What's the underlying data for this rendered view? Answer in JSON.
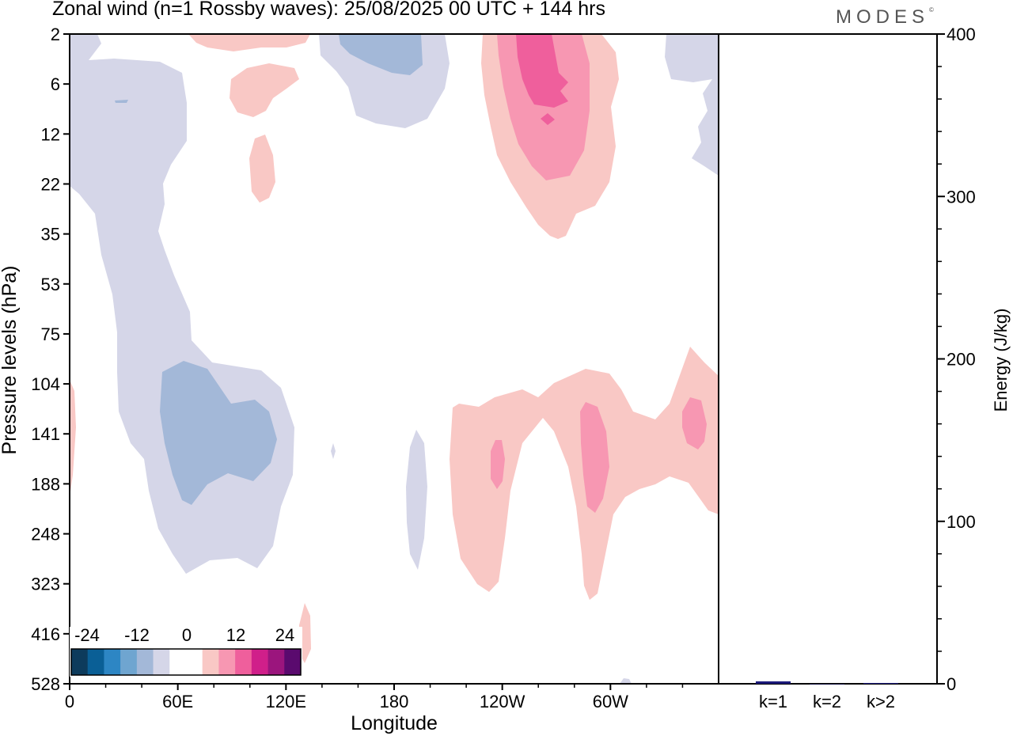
{
  "title": "Zonal wind (n=1 Rossby waves):  25/08/2025  00 UTC  + 144 hrs",
  "logo": "MODES",
  "logo_mark": "©",
  "colors": {
    "neg_fill_light": "#d5d6e8",
    "neg_fill_mid": "#a3b8d8",
    "pos_fill_light": "#f9c8c5",
    "pos_fill_mid": "#f797b2",
    "pos_fill_strong": "#ef5f9c",
    "bar_color": "#1c1a7a"
  },
  "chart_data": [
    {
      "type": "heatmap",
      "variant": "filled-contour",
      "title": "Zonal wind (n=1 Rossby waves)",
      "xlabel": "Longitude",
      "ylabel": "Pressure levels (hPa)",
      "x_ticks": [
        "0",
        "60E",
        "120E",
        "180",
        "120W",
        "60W"
      ],
      "y_ticks": [
        "2",
        "6",
        "12",
        "22",
        "35",
        "53",
        "75",
        "104",
        "141",
        "188",
        "248",
        "323",
        "416",
        "528"
      ],
      "colorbar": {
        "tick_labels": [
          "-24",
          "-12",
          "0",
          "12",
          "24"
        ],
        "colors": [
          "#0d3b5c",
          "#0a5f96",
          "#2d86c4",
          "#6fa5d0",
          "#a3b8d8",
          "#d5d6e8",
          "#ffffff",
          "#ffffff",
          "#f9c8c5",
          "#f797b2",
          "#ef5f9c",
          "#d01f8a",
          "#9b157d",
          "#5a0a6e"
        ]
      },
      "regions": [
        {
          "name": "negative-west-column",
          "level": -6
        },
        {
          "name": "negative-west-core",
          "level": -12
        },
        {
          "name": "negative-top-center",
          "level": -6
        },
        {
          "name": "negative-top-center-core",
          "level": -12
        },
        {
          "name": "negative-top-east",
          "level": -6
        },
        {
          "name": "positive-top-jet",
          "level": 6
        },
        {
          "name": "positive-top-jet-mid",
          "level": 12
        },
        {
          "name": "positive-top-jet-core",
          "level": 18
        },
        {
          "name": "positive-lower-band",
          "level": 6
        },
        {
          "name": "positive-lower-maxima",
          "level": 12
        }
      ]
    },
    {
      "type": "bar",
      "ylabel": "Energy (J/kg)",
      "categories": [
        "k=1",
        "k=2",
        "k>2"
      ],
      "values": [
        1.5,
        0,
        0.5
      ],
      "ylim": [
        0,
        400
      ],
      "y_ticks": [
        "0",
        "100",
        "200",
        "300",
        "400"
      ]
    }
  ]
}
